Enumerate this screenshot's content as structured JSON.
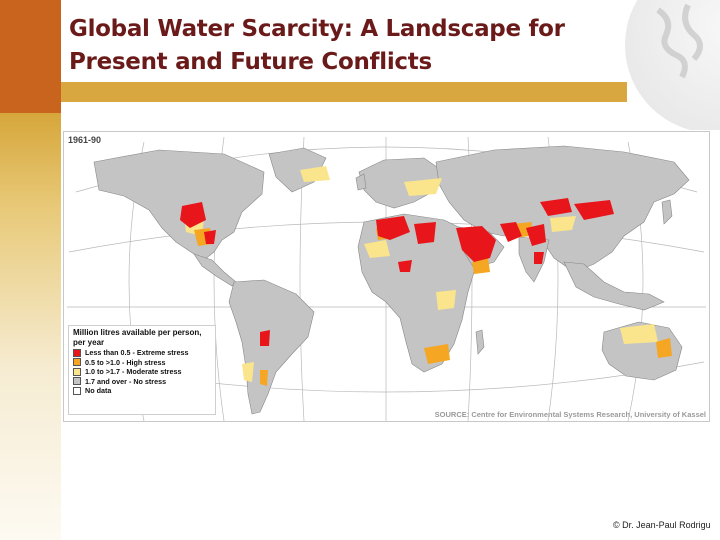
{
  "slide": {
    "title": "Global Water Scarcity: A Landscape for Present and Future Conflicts",
    "copyright": "© Dr. Jean-Paul Rodrigu"
  },
  "map": {
    "period": "1961-90",
    "source": "SOURCE: Centre for Environmental Systems Research, University of Kassel",
    "legend": {
      "title": "Million litres available per person, per year",
      "items": [
        {
          "label": "Less than 0.5 - Extreme stress",
          "color": "#e8161b"
        },
        {
          "label": "0.5 to >1.0 - High stress",
          "color": "#f5a623"
        },
        {
          "label": "1.0 to >1.7 - Moderate stress",
          "color": "#fbe58c"
        },
        {
          "label": "1.7 and over - No stress",
          "color": "#c4c4c4"
        },
        {
          "label": "No data",
          "color": "#ffffff"
        }
      ]
    },
    "colors": {
      "land": "#c4c4c4",
      "extreme": "#e8161b",
      "high": "#f5a623",
      "moderate": "#fbe58c"
    }
  },
  "theme": {
    "accent_dark": "#c8641e",
    "accent_gold": "#d8a740",
    "title_color": "#6b1a1a"
  }
}
